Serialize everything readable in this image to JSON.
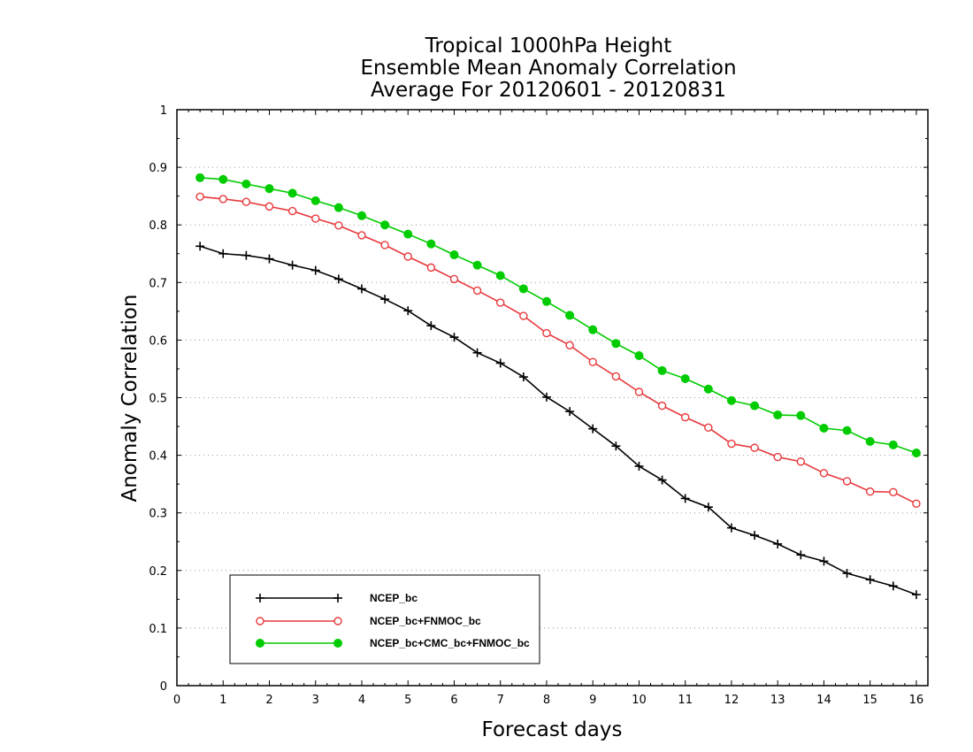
{
  "chart_data": {
    "type": "line",
    "title": [
      "Tropical 1000hPa Height",
      "Ensemble Mean Anomaly Correlation",
      "Average For 20120601 - 20120831"
    ],
    "xlabel": "Forecast days",
    "ylabel": "Anomaly Correlation",
    "xlim": [
      0,
      16.25
    ],
    "ylim": [
      0,
      1
    ],
    "xticks": [
      0,
      1,
      2,
      3,
      4,
      5,
      6,
      7,
      8,
      9,
      10,
      11,
      12,
      13,
      14,
      15,
      16
    ],
    "yticks": [
      0,
      0.1,
      0.2,
      0.3,
      0.4,
      0.5,
      0.6,
      0.7,
      0.8,
      0.9,
      1
    ],
    "ytick_labels": [
      "0",
      "0.1",
      "0.2",
      "0.3",
      "0.4",
      "0.5",
      "0.6",
      "0.7",
      "0.8",
      "0.9",
      "1"
    ],
    "grid": "horizontal dotted",
    "legend_position": "bottom-left",
    "x": [
      0.5,
      1,
      1.5,
      2,
      2.5,
      3,
      3.5,
      4,
      4.5,
      5,
      5.5,
      6,
      6.5,
      7,
      7.5,
      8,
      8.5,
      9,
      9.5,
      10,
      10.5,
      11,
      11.5,
      12,
      12.5,
      13,
      13.5,
      14,
      14.5,
      15,
      15.5,
      16
    ],
    "series": [
      {
        "name": "NCEP_bc",
        "color": "#000000",
        "marker": "plus",
        "values": [
          0.763,
          0.75,
          0.747,
          0.741,
          0.73,
          0.721,
          0.706,
          0.689,
          0.671,
          0.651,
          0.625,
          0.605,
          0.578,
          0.56,
          0.536,
          0.501,
          0.476,
          0.446,
          0.416,
          0.381,
          0.357,
          0.325,
          0.31,
          0.274,
          0.261,
          0.246,
          0.227,
          0.216,
          0.195,
          0.184,
          0.173,
          0.158
        ]
      },
      {
        "name": "NCEP_bc+FNMOC_bc",
        "color": "#e8383c",
        "marker": "open-circle",
        "values": [
          0.849,
          0.845,
          0.84,
          0.832,
          0.824,
          0.811,
          0.799,
          0.782,
          0.765,
          0.745,
          0.726,
          0.706,
          0.686,
          0.665,
          0.642,
          0.612,
          0.591,
          0.562,
          0.537,
          0.51,
          0.486,
          0.466,
          0.448,
          0.42,
          0.413,
          0.397,
          0.389,
          0.369,
          0.355,
          0.337,
          0.336,
          0.316
        ]
      },
      {
        "name": "NCEP_bc+CMC_bc+FNMOC_bc",
        "color": "#00cc00",
        "marker": "filled-circle",
        "values": [
          0.882,
          0.879,
          0.871,
          0.863,
          0.855,
          0.842,
          0.83,
          0.816,
          0.8,
          0.784,
          0.767,
          0.748,
          0.73,
          0.712,
          0.689,
          0.667,
          0.643,
          0.618,
          0.594,
          0.573,
          0.547,
          0.533,
          0.515,
          0.495,
          0.486,
          0.47,
          0.469,
          0.447,
          0.443,
          0.424,
          0.418,
          0.404
        ]
      }
    ]
  }
}
